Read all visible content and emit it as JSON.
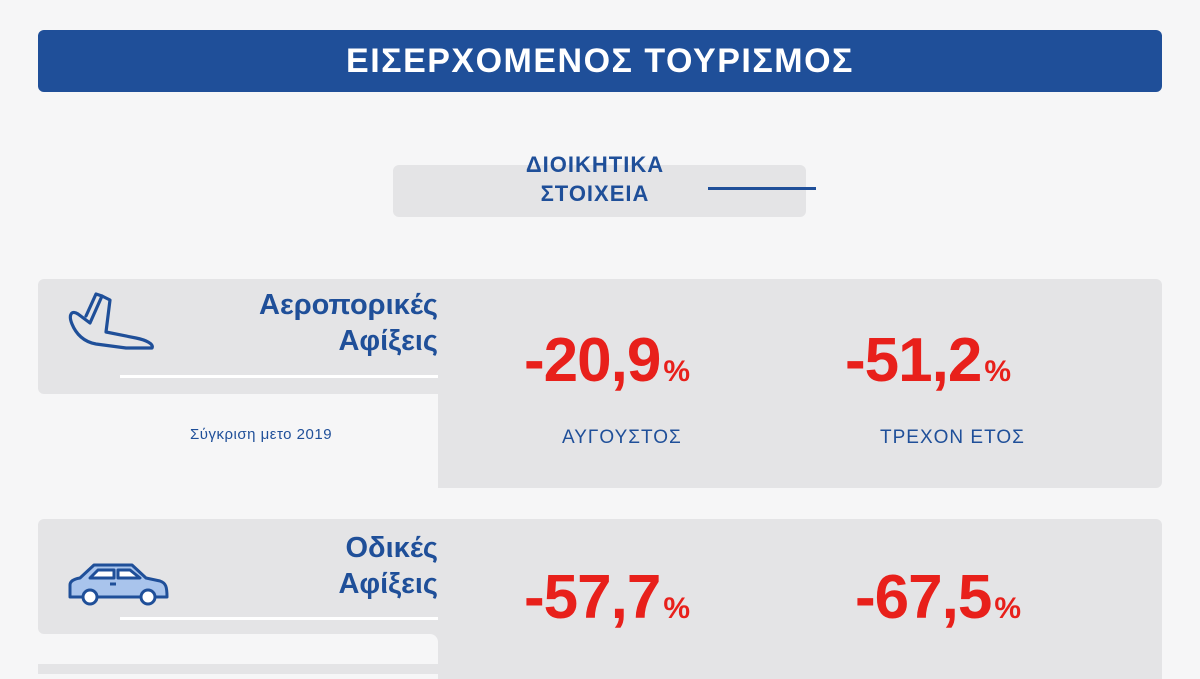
{
  "header": {
    "title": "ΕΙΣΕΡΧΟΜΕΝΟΣ ΤΟΥΡΙΣΜΟΣ"
  },
  "section": {
    "line1": "ΔΙΟΙΚΗΤΙΚΑ",
    "line2": "ΣΤΟΙΧΕΙΑ"
  },
  "air": {
    "icon": "plane-landing-icon",
    "label_line1": "Αεροπορικές",
    "label_line2": "Αφίξεις",
    "comparison": "Σύγκριση μετο 2019",
    "august_value": "-20,9",
    "ytd_value": "-51,2",
    "percent": "%",
    "august_label": "ΑΥΓΟΥΣΤΟΣ",
    "ytd_label": "ΤΡΕΧΟΝ ΕΤΟΣ"
  },
  "road": {
    "icon": "car-icon",
    "label_line1": "Οδικές",
    "label_line2": "Αφίξεις",
    "august_value": "-57,7",
    "ytd_value": "-67,5",
    "percent": "%"
  },
  "colors": {
    "brand_blue": "#1f4f99",
    "negative_red": "#e8201b",
    "panel_grey": "#e4e4e6"
  }
}
